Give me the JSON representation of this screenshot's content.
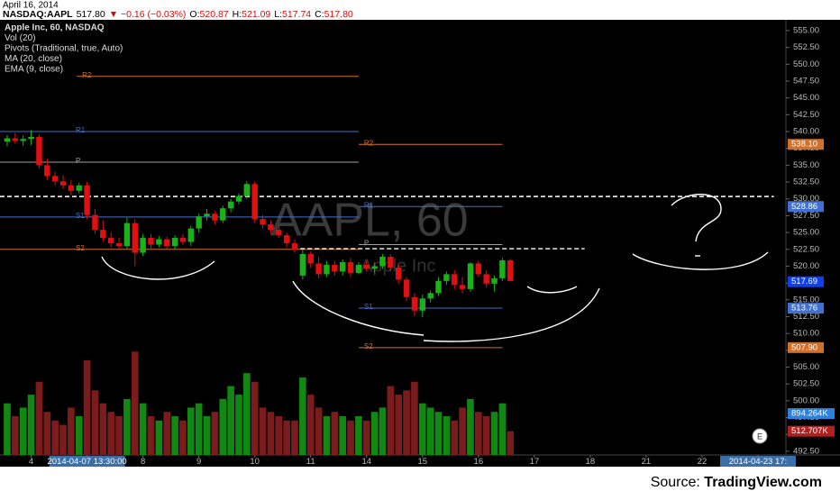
{
  "header": {
    "date": "April 16, 2014",
    "symbol": "NASDAQ:AAPL",
    "last": "517.80",
    "change": "▼ −0.16 (−0.03%)",
    "ohlc": [
      {
        "key": "O:",
        "value": "520.87"
      },
      {
        "key": "H:",
        "value": "521.09"
      },
      {
        "key": "L:",
        "value": "517.74"
      },
      {
        "key": "C:",
        "value": "517.80"
      }
    ]
  },
  "legend": [
    "Apple Inc, 60, NASDAQ",
    "Vol (20)",
    "Pivots (Traditional, true, Auto)",
    "MA (20, close)",
    "EMA (9, close)"
  ],
  "watermark": {
    "symbol": "AAPL, 60",
    "name": "Apple Inc"
  },
  "earnings_marker": "E",
  "source": {
    "prefix": "Source: ",
    "site": "TradingView.com"
  },
  "chart_data": {
    "type": "candlestick",
    "ylim": [
      491.95,
      556.6
    ],
    "yticks": [
      {
        "value": 555,
        "label": "555.00"
      },
      {
        "value": 552.5,
        "label": "552.50"
      },
      {
        "value": 550,
        "label": "550.00"
      },
      {
        "value": 547.5,
        "label": "547.50"
      },
      {
        "value": 545,
        "label": "545.00"
      },
      {
        "value": 542.5,
        "label": "542.50"
      },
      {
        "value": 540,
        "label": "540.00"
      },
      {
        "value": 537.5,
        "label": "537.50"
      },
      {
        "value": 535,
        "label": "535.00"
      },
      {
        "value": 532.5,
        "label": "532.50"
      },
      {
        "value": 530,
        "label": "530.00"
      },
      {
        "value": 527.5,
        "label": "527.50"
      },
      {
        "value": 525,
        "label": "525.00"
      },
      {
        "value": 522.5,
        "label": "522.50"
      },
      {
        "value": 520,
        "label": "520.00"
      },
      {
        "value": 517.5,
        "label": "517.50"
      },
      {
        "value": 515,
        "label": "515.00"
      },
      {
        "value": 512.5,
        "label": "512.50"
      },
      {
        "value": 510,
        "label": "510.00"
      },
      {
        "value": 507.5,
        "label": "507.50"
      },
      {
        "value": 505,
        "label": "505.00"
      },
      {
        "value": 502.5,
        "label": "502.50"
      },
      {
        "value": 500,
        "label": "500.00"
      },
      {
        "value": 497.5,
        "label": "497.50"
      },
      {
        "value": 495,
        "label": "495.00"
      },
      {
        "value": 492.5,
        "label": "492.50"
      }
    ],
    "xlim": [
      -0.9,
      97.5
    ],
    "xticks": [
      {
        "value": 3,
        "label": "4"
      },
      {
        "value": 10,
        "label": "2014-04-07 13:30:00"
      },
      {
        "value": 17,
        "label": "8"
      },
      {
        "value": 24,
        "label": "9"
      },
      {
        "value": 31,
        "label": "10"
      },
      {
        "value": 38,
        "label": "11"
      },
      {
        "value": 45,
        "label": "14"
      },
      {
        "value": 52,
        "label": "15"
      },
      {
        "value": 59,
        "label": "16"
      },
      {
        "value": 66,
        "label": "17"
      },
      {
        "value": 73,
        "label": "18"
      },
      {
        "value": 80,
        "label": "21"
      },
      {
        "value": 87,
        "label": "22"
      },
      {
        "value": 94,
        "label": "2014-04-23 17:"
      }
    ],
    "x": [
      0,
      1,
      2,
      3,
      4,
      5,
      6,
      7,
      8,
      9,
      10,
      11,
      12,
      13,
      14,
      15,
      16,
      17,
      18,
      19,
      20,
      21,
      22,
      23,
      24,
      25,
      26,
      27,
      28,
      29,
      30,
      31,
      32,
      33,
      34,
      35,
      36,
      37,
      38,
      39,
      40,
      41,
      42,
      43,
      44,
      45,
      46,
      47,
      48,
      49,
      50,
      51,
      52,
      53,
      54,
      55,
      56,
      57,
      58,
      59,
      60,
      61,
      62,
      63
    ],
    "open": [
      538.5,
      539.0,
      538.6,
      538.9,
      539.2,
      535.0,
      533.4,
      532.6,
      532.0,
      531.2,
      532.0,
      527.6,
      525.4,
      524.2,
      523.4,
      523.0,
      526.4,
      522.0,
      524.2,
      523.2,
      524.0,
      523.0,
      524.2,
      523.6,
      525.6,
      527.4,
      527.8,
      526.8,
      528.6,
      529.6,
      530.4,
      532.2,
      527.0,
      526.2,
      525.4,
      524.6,
      523.4,
      518.6,
      521.8,
      520.4,
      518.8,
      520.2,
      519.2,
      520.6,
      519.0,
      520.2,
      519.6,
      520.0,
      521.4,
      519.8,
      518.0,
      515.4,
      513.4,
      515.2,
      516.0,
      517.8,
      518.8,
      517.2,
      516.6,
      520.4,
      518.8,
      517.4,
      518.2,
      520.87
    ],
    "high": [
      539.5,
      539.8,
      539.4,
      540.2,
      539.6,
      536.0,
      534.0,
      533.5,
      532.8,
      532.4,
      532.5,
      528.5,
      526.8,
      525.0,
      524.2,
      527.2,
      527.0,
      524.8,
      524.8,
      524.5,
      524.4,
      524.6,
      524.8,
      526.0,
      527.8,
      528.5,
      528.2,
      529.0,
      530.0,
      530.8,
      532.6,
      532.6,
      527.6,
      526.8,
      526.0,
      525.0,
      524.0,
      522.4,
      522.2,
      521.4,
      520.8,
      520.8,
      521.0,
      521.2,
      520.6,
      520.8,
      520.4,
      521.8,
      521.8,
      520.2,
      518.4,
      516.0,
      515.8,
      516.4,
      518.4,
      519.2,
      519.4,
      518.4,
      520.6,
      520.8,
      519.4,
      518.6,
      521.2,
      521.09
    ],
    "low": [
      537.8,
      538.2,
      537.9,
      538.0,
      534.5,
      532.8,
      532.0,
      531.5,
      530.6,
      530.8,
      527.0,
      524.8,
      523.6,
      522.8,
      522.5,
      522.6,
      520.0,
      521.5,
      522.5,
      522.8,
      522.6,
      522.4,
      523.2,
      523.0,
      525.0,
      526.8,
      526.2,
      526.4,
      528.0,
      529.2,
      530.0,
      526.4,
      525.6,
      524.8,
      524.2,
      522.8,
      522.0,
      518.0,
      519.8,
      518.2,
      518.4,
      518.6,
      518.6,
      518.4,
      518.8,
      519.2,
      519.0,
      519.6,
      519.2,
      517.4,
      514.8,
      512.6,
      512.4,
      514.6,
      515.6,
      517.2,
      516.6,
      516.0,
      516.2,
      518.4,
      516.8,
      516.2,
      517.8,
      517.74
    ],
    "close": [
      539.0,
      538.6,
      538.9,
      539.2,
      535.0,
      533.4,
      532.6,
      532.0,
      531.2,
      532.0,
      527.6,
      525.4,
      524.2,
      523.4,
      523.0,
      526.4,
      522.0,
      524.2,
      523.2,
      524.0,
      523.0,
      524.2,
      523.6,
      525.6,
      527.4,
      527.8,
      526.8,
      528.6,
      529.6,
      530.4,
      532.2,
      527.0,
      526.2,
      525.4,
      524.6,
      523.4,
      522.4,
      521.8,
      520.4,
      518.8,
      520.2,
      519.2,
      520.6,
      519.0,
      520.2,
      519.6,
      520.0,
      521.4,
      519.8,
      518.0,
      515.4,
      513.4,
      515.2,
      516.0,
      517.8,
      518.8,
      517.2,
      516.6,
      520.4,
      518.8,
      517.4,
      518.2,
      520.87,
      517.8
    ],
    "volume": [
      1116000,
      837000,
      1023000,
      1302000,
      1581000,
      930000,
      744000,
      651000,
      1023000,
      837000,
      2046000,
      1395000,
      1116000,
      930000,
      837000,
      1209000,
      2232000,
      1116000,
      837000,
      744000,
      930000,
      837000,
      744000,
      1023000,
      1116000,
      837000,
      930000,
      1209000,
      1488000,
      1302000,
      1767000,
      1581000,
      1023000,
      930000,
      837000,
      744000,
      744000,
      1674000,
      1302000,
      1023000,
      837000,
      930000,
      837000,
      744000,
      837000,
      744000,
      930000,
      1023000,
      1488000,
      1302000,
      1395000,
      1581000,
      1116000,
      1023000,
      930000,
      837000,
      744000,
      1023000,
      1209000,
      930000,
      837000,
      930000,
      1116000,
      512707
    ],
    "volume_ylim": [
      0,
      9400000
    ],
    "up_color": "#19b219",
    "down_color": "#e01010",
    "volume_up_color": "#118811",
    "volume_down_color": "#7a1c1c",
    "pivots": [
      {
        "name": "R2",
        "value": 548.2,
        "start": 8.7,
        "end": 44,
        "color": "#d0702a"
      },
      {
        "name": "R1",
        "value": 540.0,
        "start": -0.9,
        "end": 44,
        "color": "#4070d0"
      },
      {
        "name": "P",
        "value": 535.45,
        "start": -0.9,
        "end": 44,
        "color": "#a0a0a0"
      },
      {
        "name": "S1",
        "value": 527.3,
        "start": -0.9,
        "end": 44,
        "color": "#4070d0"
      },
      {
        "name": "S2",
        "value": 522.5,
        "start": -0.9,
        "end": 44,
        "color": "#d0702a"
      },
      {
        "name": "R2",
        "value": 538.1,
        "start": 44,
        "end": 62,
        "color": "#d0702a"
      },
      {
        "name": "R1",
        "value": 528.86,
        "start": 44,
        "end": 62,
        "color": "#4070d0"
      },
      {
        "name": "P",
        "value": 523.2,
        "start": 44,
        "end": 62,
        "color": "#a0a0a0"
      },
      {
        "name": "S1",
        "value": 513.76,
        "start": 44,
        "end": 62,
        "color": "#4070d0"
      },
      {
        "name": "S2",
        "value": 507.9,
        "start": 44,
        "end": 62,
        "color": "#d0702a"
      }
    ],
    "dashed_levels": [
      {
        "value": 530.35,
        "start": -0.9,
        "end": 96
      },
      {
        "value": 522.6,
        "start": 35.8,
        "end": 72.3
      }
    ],
    "price_badges": [
      {
        "value": 538.1,
        "label": "538.10",
        "color": "#d0702a"
      },
      {
        "value": 528.86,
        "label": "528.86",
        "color": "#4070d0"
      },
      {
        "value": 517.69,
        "label": "517.69",
        "color": "#1040e8"
      },
      {
        "value": 513.76,
        "label": "513.76",
        "color": "#4070d0"
      },
      {
        "value": 507.9,
        "label": "507.90",
        "color": "#d0702a"
      }
    ],
    "volume_badges": [
      {
        "value": 894264,
        "label": "894.264K",
        "color": "#2f80d8"
      },
      {
        "value": 512707,
        "label": "512.707K",
        "color": "#b02020"
      }
    ]
  }
}
